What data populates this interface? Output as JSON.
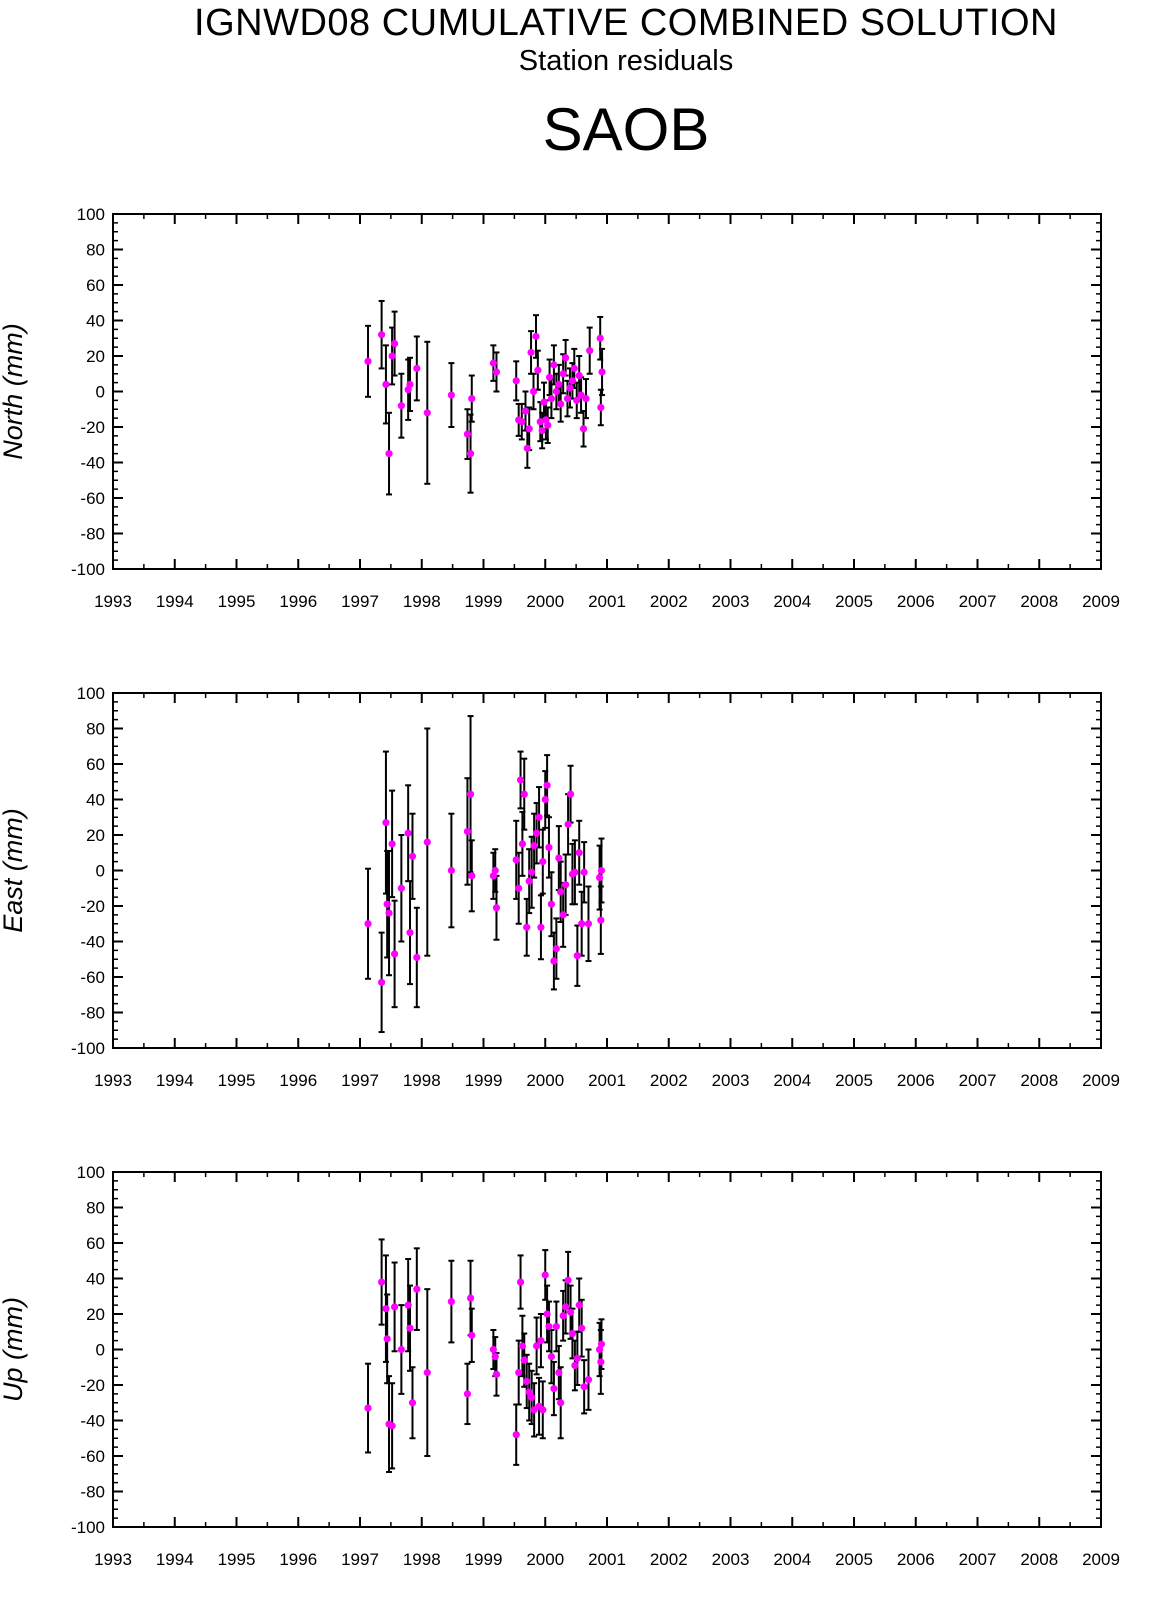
{
  "header": {
    "title": "IGNWD08 CUMULATIVE COMBINED SOLUTION",
    "subtitle": "Station residuals",
    "station": "SAOB"
  },
  "colors": {
    "point": "#ff00ff",
    "errorbar": "#000000",
    "axis": "#000000"
  },
  "chart_data": [
    {
      "type": "scatter",
      "ylabel": "North (mm)",
      "xlim": [
        1993,
        2009
      ],
      "ylim": [
        -100,
        100
      ],
      "xticks": [
        1993,
        1994,
        1995,
        1996,
        1997,
        1998,
        1999,
        2000,
        2001,
        2002,
        2003,
        2004,
        2005,
        2006,
        2007,
        2008,
        2009
      ],
      "yticks": [
        -100,
        -80,
        -60,
        -40,
        -20,
        0,
        20,
        40,
        60,
        80,
        100
      ],
      "grid": false,
      "points": [
        {
          "x": 1997.13,
          "y": 17,
          "err": 20
        },
        {
          "x": 1997.35,
          "y": 32,
          "err": 19
        },
        {
          "x": 1997.42,
          "y": 4,
          "err": 22
        },
        {
          "x": 1997.47,
          "y": -35,
          "err": 23
        },
        {
          "x": 1997.52,
          "y": 20,
          "err": 16
        },
        {
          "x": 1997.56,
          "y": 27,
          "err": 18
        },
        {
          "x": 1997.67,
          "y": -8,
          "err": 18
        },
        {
          "x": 1997.78,
          "y": 1,
          "err": 17
        },
        {
          "x": 1997.81,
          "y": 4,
          "err": 15
        },
        {
          "x": 1997.92,
          "y": 13,
          "err": 18
        },
        {
          "x": 1998.09,
          "y": -12,
          "err": 40
        },
        {
          "x": 1998.48,
          "y": -2,
          "err": 18
        },
        {
          "x": 1998.74,
          "y": -24,
          "err": 14
        },
        {
          "x": 1998.79,
          "y": -35,
          "err": 22
        },
        {
          "x": 1998.81,
          "y": -4,
          "err": 13
        },
        {
          "x": 1999.16,
          "y": 16,
          "err": 10
        },
        {
          "x": 1999.21,
          "y": 11,
          "err": 11
        },
        {
          "x": 1999.53,
          "y": 6,
          "err": 11
        },
        {
          "x": 1999.57,
          "y": -16,
          "err": 9
        },
        {
          "x": 1999.62,
          "y": -17,
          "err": 10
        },
        {
          "x": 1999.68,
          "y": -11,
          "err": 11
        },
        {
          "x": 1999.71,
          "y": -32,
          "err": 11
        },
        {
          "x": 1999.74,
          "y": -21,
          "err": 12
        },
        {
          "x": 1999.77,
          "y": 22,
          "err": 12
        },
        {
          "x": 1999.81,
          "y": 0,
          "err": 10
        },
        {
          "x": 1999.85,
          "y": 31,
          "err": 12
        },
        {
          "x": 1999.88,
          "y": 12,
          "err": 11
        },
        {
          "x": 1999.92,
          "y": -17,
          "err": 11
        },
        {
          "x": 1999.95,
          "y": -22,
          "err": 10
        },
        {
          "x": 1999.98,
          "y": -6,
          "err": 11
        },
        {
          "x": 2000.01,
          "y": -16,
          "err": 11
        },
        {
          "x": 2000.04,
          "y": -19,
          "err": 10
        },
        {
          "x": 2000.07,
          "y": 8,
          "err": 10
        },
        {
          "x": 2000.1,
          "y": -4,
          "err": 11
        },
        {
          "x": 2000.14,
          "y": 15,
          "err": 11
        },
        {
          "x": 2000.18,
          "y": 0,
          "err": 10
        },
        {
          "x": 2000.22,
          "y": 4,
          "err": 11
        },
        {
          "x": 2000.25,
          "y": -7,
          "err": 10
        },
        {
          "x": 2000.29,
          "y": 10,
          "err": 11
        },
        {
          "x": 2000.33,
          "y": 19,
          "err": 10
        },
        {
          "x": 2000.36,
          "y": -4,
          "err": 10
        },
        {
          "x": 2000.4,
          "y": 2,
          "err": 11
        },
        {
          "x": 2000.44,
          "y": 6,
          "err": 10
        },
        {
          "x": 2000.47,
          "y": 13,
          "err": 11
        },
        {
          "x": 2000.51,
          "y": -5,
          "err": 10
        },
        {
          "x": 2000.55,
          "y": 9,
          "err": 11
        },
        {
          "x": 2000.58,
          "y": -2,
          "err": 10
        },
        {
          "x": 2000.62,
          "y": -21,
          "err": 10
        },
        {
          "x": 2000.66,
          "y": -4,
          "err": 11
        },
        {
          "x": 2000.72,
          "y": 23,
          "err": 13
        },
        {
          "x": 2000.89,
          "y": 30,
          "err": 12
        },
        {
          "x": 2000.92,
          "y": 11,
          "err": 13
        },
        {
          "x": 2000.9,
          "y": -9,
          "err": 10
        }
      ]
    },
    {
      "type": "scatter",
      "ylabel": "East (mm)",
      "xlim": [
        1993,
        2009
      ],
      "ylim": [
        -100,
        100
      ],
      "xticks": [
        1993,
        1994,
        1995,
        1996,
        1997,
        1998,
        1999,
        2000,
        2001,
        2002,
        2003,
        2004,
        2005,
        2006,
        2007,
        2008,
        2009
      ],
      "yticks": [
        -100,
        -80,
        -60,
        -40,
        -20,
        0,
        20,
        40,
        60,
        80,
        100
      ],
      "grid": false,
      "points": [
        {
          "x": 1997.13,
          "y": -30,
          "err": 31
        },
        {
          "x": 1997.35,
          "y": -63,
          "err": 28
        },
        {
          "x": 1997.42,
          "y": 27,
          "err": 40
        },
        {
          "x": 1997.44,
          "y": -19,
          "err": 30
        },
        {
          "x": 1997.47,
          "y": -24,
          "err": 35
        },
        {
          "x": 1997.52,
          "y": 15,
          "err": 30
        },
        {
          "x": 1997.56,
          "y": -47,
          "err": 30
        },
        {
          "x": 1997.67,
          "y": -10,
          "err": 30
        },
        {
          "x": 1997.78,
          "y": 21,
          "err": 27
        },
        {
          "x": 1997.81,
          "y": -35,
          "err": 29
        },
        {
          "x": 1997.85,
          "y": 8,
          "err": 24
        },
        {
          "x": 1997.92,
          "y": -49,
          "err": 28
        },
        {
          "x": 1998.09,
          "y": 16,
          "err": 64
        },
        {
          "x": 1998.48,
          "y": 0,
          "err": 32
        },
        {
          "x": 1998.74,
          "y": 22,
          "err": 30
        },
        {
          "x": 1998.79,
          "y": 43,
          "err": 44
        },
        {
          "x": 1998.81,
          "y": -3,
          "err": 20
        },
        {
          "x": 1999.16,
          "y": -3,
          "err": 13
        },
        {
          "x": 1999.19,
          "y": 0,
          "err": 12
        },
        {
          "x": 1999.21,
          "y": -21,
          "err": 18
        },
        {
          "x": 1999.53,
          "y": 6,
          "err": 22
        },
        {
          "x": 1999.57,
          "y": -10,
          "err": 20
        },
        {
          "x": 1999.6,
          "y": 51,
          "err": 16
        },
        {
          "x": 1999.63,
          "y": 15,
          "err": 18
        },
        {
          "x": 1999.66,
          "y": 43,
          "err": 20
        },
        {
          "x": 1999.7,
          "y": -32,
          "err": 16
        },
        {
          "x": 1999.74,
          "y": -6,
          "err": 18
        },
        {
          "x": 1999.78,
          "y": -1,
          "err": 20
        },
        {
          "x": 1999.82,
          "y": 14,
          "err": 18
        },
        {
          "x": 1999.86,
          "y": 21,
          "err": 17
        },
        {
          "x": 1999.9,
          "y": 30,
          "err": 17
        },
        {
          "x": 1999.93,
          "y": -32,
          "err": 18
        },
        {
          "x": 1999.96,
          "y": 5,
          "err": 18
        },
        {
          "x": 2000.0,
          "y": 40,
          "err": 16
        },
        {
          "x": 2000.03,
          "y": 48,
          "err": 17
        },
        {
          "x": 2000.06,
          "y": 13,
          "err": 17
        },
        {
          "x": 2000.1,
          "y": -19,
          "err": 18
        },
        {
          "x": 2000.14,
          "y": -51,
          "err": 16
        },
        {
          "x": 2000.18,
          "y": -44,
          "err": 17
        },
        {
          "x": 2000.22,
          "y": 7,
          "err": 18
        },
        {
          "x": 2000.25,
          "y": -12,
          "err": 17
        },
        {
          "x": 2000.29,
          "y": -25,
          "err": 18
        },
        {
          "x": 2000.33,
          "y": -8,
          "err": 17
        },
        {
          "x": 2000.37,
          "y": 26,
          "err": 17
        },
        {
          "x": 2000.41,
          "y": 43,
          "err": 16
        },
        {
          "x": 2000.44,
          "y": -2,
          "err": 17
        },
        {
          "x": 2000.48,
          "y": -1,
          "err": 18
        },
        {
          "x": 2000.52,
          "y": -48,
          "err": 17
        },
        {
          "x": 2000.55,
          "y": 10,
          "err": 18
        },
        {
          "x": 2000.59,
          "y": -30,
          "err": 18
        },
        {
          "x": 2000.63,
          "y": -1,
          "err": 17
        },
        {
          "x": 2000.7,
          "y": -30,
          "err": 21
        },
        {
          "x": 2000.88,
          "y": -4,
          "err": 18
        },
        {
          "x": 2000.91,
          "y": 0,
          "err": 18
        },
        {
          "x": 2000.9,
          "y": -28,
          "err": 19
        }
      ]
    },
    {
      "type": "scatter",
      "ylabel": "Up (mm)",
      "xlim": [
        1993,
        2009
      ],
      "ylim": [
        -100,
        100
      ],
      "xticks": [
        1993,
        1994,
        1995,
        1996,
        1997,
        1998,
        1999,
        2000,
        2001,
        2002,
        2003,
        2004,
        2005,
        2006,
        2007,
        2008,
        2009
      ],
      "yticks": [
        -100,
        -80,
        -60,
        -40,
        -20,
        0,
        20,
        40,
        60,
        80,
        100
      ],
      "grid": false,
      "points": [
        {
          "x": 1997.13,
          "y": -33,
          "err": 25
        },
        {
          "x": 1997.35,
          "y": 38,
          "err": 24
        },
        {
          "x": 1997.42,
          "y": 23,
          "err": 30
        },
        {
          "x": 1997.44,
          "y": 6,
          "err": 25
        },
        {
          "x": 1997.47,
          "y": -42,
          "err": 27
        },
        {
          "x": 1997.52,
          "y": -43,
          "err": 24
        },
        {
          "x": 1997.56,
          "y": 24,
          "err": 25
        },
        {
          "x": 1997.67,
          "y": 0,
          "err": 25
        },
        {
          "x": 1997.78,
          "y": 25,
          "err": 26
        },
        {
          "x": 1997.81,
          "y": 12,
          "err": 24
        },
        {
          "x": 1997.85,
          "y": -30,
          "err": 20
        },
        {
          "x": 1997.92,
          "y": 34,
          "err": 23
        },
        {
          "x": 1998.09,
          "y": -13,
          "err": 47
        },
        {
          "x": 1998.48,
          "y": 27,
          "err": 23
        },
        {
          "x": 1998.74,
          "y": -25,
          "err": 17
        },
        {
          "x": 1998.79,
          "y": 29,
          "err": 21
        },
        {
          "x": 1998.81,
          "y": 8,
          "err": 15
        },
        {
          "x": 1999.16,
          "y": 0,
          "err": 11
        },
        {
          "x": 1999.19,
          "y": -4,
          "err": 11
        },
        {
          "x": 1999.21,
          "y": -14,
          "err": 12
        },
        {
          "x": 1999.53,
          "y": -48,
          "err": 17
        },
        {
          "x": 1999.57,
          "y": -13,
          "err": 18
        },
        {
          "x": 1999.6,
          "y": 38,
          "err": 15
        },
        {
          "x": 1999.63,
          "y": 2,
          "err": 17
        },
        {
          "x": 1999.66,
          "y": -6,
          "err": 15
        },
        {
          "x": 1999.7,
          "y": -18,
          "err": 15
        },
        {
          "x": 1999.74,
          "y": -24,
          "err": 16
        },
        {
          "x": 1999.78,
          "y": -27,
          "err": 15
        },
        {
          "x": 1999.82,
          "y": -34,
          "err": 15
        },
        {
          "x": 1999.86,
          "y": 2,
          "err": 16
        },
        {
          "x": 1999.9,
          "y": -32,
          "err": 16
        },
        {
          "x": 1999.93,
          "y": 5,
          "err": 15
        },
        {
          "x": 1999.96,
          "y": -34,
          "err": 16
        },
        {
          "x": 2000.0,
          "y": 42,
          "err": 14
        },
        {
          "x": 2000.03,
          "y": 20,
          "err": 16
        },
        {
          "x": 2000.06,
          "y": 13,
          "err": 14
        },
        {
          "x": 2000.1,
          "y": -4,
          "err": 15
        },
        {
          "x": 2000.14,
          "y": -22,
          "err": 15
        },
        {
          "x": 2000.18,
          "y": 13,
          "err": 14
        },
        {
          "x": 2000.22,
          "y": -13,
          "err": 15
        },
        {
          "x": 2000.25,
          "y": -30,
          "err": 20
        },
        {
          "x": 2000.29,
          "y": 19,
          "err": 14
        },
        {
          "x": 2000.33,
          "y": 24,
          "err": 15
        },
        {
          "x": 2000.37,
          "y": 39,
          "err": 16
        },
        {
          "x": 2000.41,
          "y": 21,
          "err": 15
        },
        {
          "x": 2000.44,
          "y": 9,
          "err": 14
        },
        {
          "x": 2000.48,
          "y": -9,
          "err": 14
        },
        {
          "x": 2000.52,
          "y": -5,
          "err": 15
        },
        {
          "x": 2000.55,
          "y": 25,
          "err": 15
        },
        {
          "x": 2000.59,
          "y": 12,
          "err": 16
        },
        {
          "x": 2000.63,
          "y": -21,
          "err": 15
        },
        {
          "x": 2000.7,
          "y": -17,
          "err": 17
        },
        {
          "x": 2000.88,
          "y": 0,
          "err": 15
        },
        {
          "x": 2000.91,
          "y": 3,
          "err": 14
        },
        {
          "x": 2000.9,
          "y": -7,
          "err": 18
        }
      ]
    }
  ]
}
